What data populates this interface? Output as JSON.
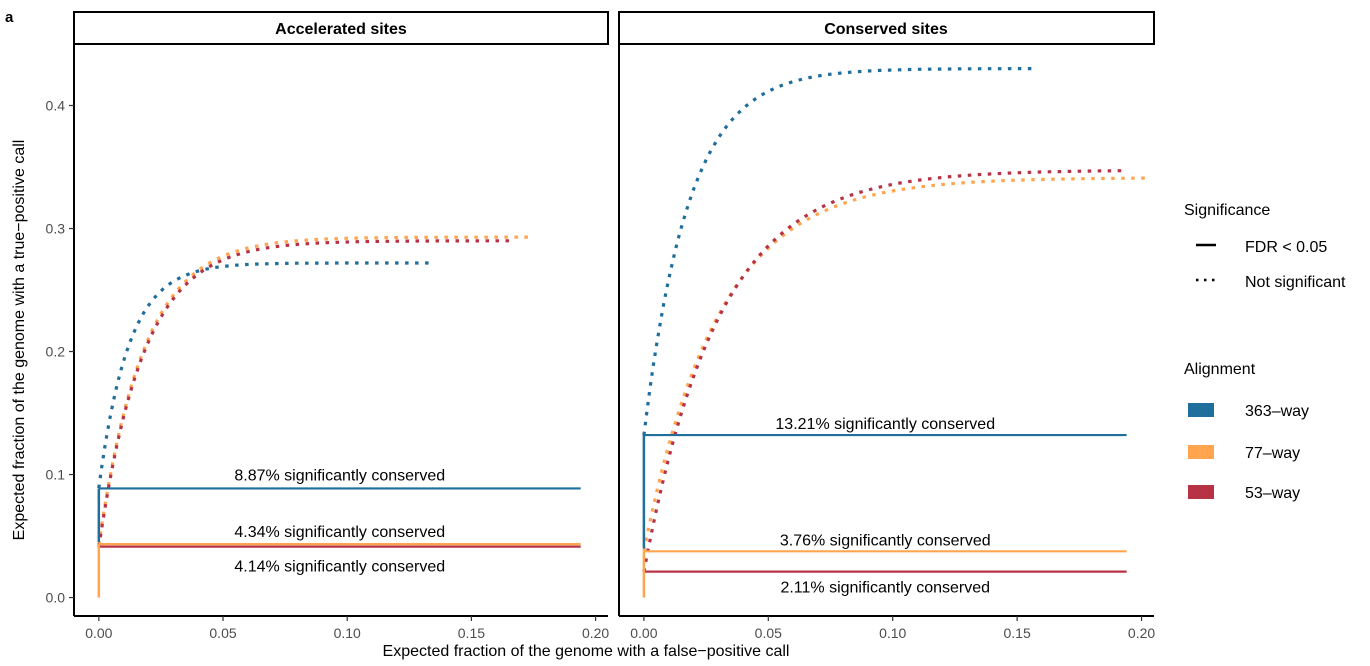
{
  "panel_letter": "a",
  "colors": {
    "363-way": "#1f6e9c",
    "77-way": "#ffa54f",
    "53-way": "#b83245",
    "frame": "#000000",
    "text": "#000000",
    "tick_text": "#4d4d4d"
  },
  "legend": {
    "significance_title": "Significance",
    "significance_items": [
      {
        "label": "FDR < 0.05",
        "style": "solid"
      },
      {
        "label": "Not significant",
        "style": "dotted"
      }
    ],
    "alignment_title": "Alignment",
    "alignment_items": [
      {
        "label": "363–way",
        "key": "363-way"
      },
      {
        "label": "77–way",
        "key": "77-way"
      },
      {
        "label": "53–way",
        "key": "53-way"
      }
    ]
  },
  "chart_data": [
    {
      "type": "line",
      "panel": "Accelerated sites",
      "xlabel": "Expected fraction of the genome with a false−positive call",
      "ylabel": "Expected fraction of the genome with a true−positive call",
      "xlim": [
        -0.01,
        0.205
      ],
      "ylim": [
        -0.015,
        0.45
      ],
      "x_ticks": [
        "0.00",
        "0.05",
        "0.10",
        "0.15",
        "0.20"
      ],
      "y_ticks": [
        "0.0",
        "0.1",
        "0.2",
        "0.3",
        "0.4"
      ],
      "grid": false,
      "series": [
        {
          "name": "363–way",
          "key": "363-way",
          "significance": "Not significant",
          "x_end": 0.135,
          "y_end": 0.272,
          "y_start": 0.089,
          "k": 0.012
        },
        {
          "name": "77–way",
          "key": "77-way",
          "significance": "Not significant",
          "x_end": 0.173,
          "y_end": 0.293,
          "y_start": 0.043,
          "k": 0.018
        },
        {
          "name": "53–way",
          "key": "53-way",
          "significance": "Not significant",
          "x_end": 0.167,
          "y_end": 0.29,
          "y_start": 0.041,
          "k": 0.018
        }
      ],
      "significant": [
        {
          "key": "363-way",
          "y": 0.0887,
          "x_end": 0.194,
          "label": "8.87% significantly conserved",
          "label_y": 0.1
        },
        {
          "key": "77-way",
          "y": 0.0434,
          "x_end": 0.194,
          "label": "4.34% significantly conserved",
          "label_y": 0.054
        },
        {
          "key": "53-way",
          "y": 0.0414,
          "x_end": 0.194,
          "label": "4.14% significantly conserved",
          "label_y": 0.026
        }
      ],
      "vertical_segments": [
        {
          "key": "363-way",
          "y_from": 0.045,
          "y_to": 0.0887
        },
        {
          "key": "77-way",
          "y_from": 0.0,
          "y_to": 0.0434
        }
      ]
    },
    {
      "type": "line",
      "panel": "Conserved sites",
      "xlabel": "Expected fraction of the genome with a false−positive call",
      "ylabel": "Expected fraction of the genome with a true−positive call",
      "xlim": [
        -0.01,
        0.205
      ],
      "ylim": [
        -0.015,
        0.45
      ],
      "x_ticks": [
        "0.00",
        "0.05",
        "0.10",
        "0.15",
        "0.20"
      ],
      "y_ticks": [
        "0.0",
        "0.1",
        "0.2",
        "0.3",
        "0.4"
      ],
      "grid": false,
      "series": [
        {
          "name": "363–way",
          "key": "363-way",
          "significance": "Not significant",
          "x_end": 0.158,
          "y_end": 0.43,
          "y_start": 0.132,
          "k": 0.018
        },
        {
          "name": "77–way",
          "key": "77-way",
          "significance": "Not significant",
          "x_end": 0.203,
          "y_end": 0.341,
          "y_start": 0.038,
          "k": 0.03
        },
        {
          "name": "53–way",
          "key": "53-way",
          "significance": "Not significant",
          "x_end": 0.193,
          "y_end": 0.347,
          "y_start": 0.021,
          "k": 0.03
        }
      ],
      "significant": [
        {
          "key": "363-way",
          "y": 0.1321,
          "x_end": 0.194,
          "label": "13.21% significantly conserved",
          "label_y": 0.142
        },
        {
          "key": "77-way",
          "y": 0.0376,
          "x_end": 0.194,
          "label": "3.76% significantly conserved",
          "label_y": 0.047
        },
        {
          "key": "53-way",
          "y": 0.0211,
          "x_end": 0.194,
          "label": "2.11% significantly conserved",
          "label_y": 0.009
        }
      ],
      "vertical_segments": [
        {
          "key": "363-way",
          "y_from": 0.04,
          "y_to": 0.1321
        },
        {
          "key": "77-way",
          "y_from": 0.0,
          "y_to": 0.0376
        }
      ]
    }
  ]
}
